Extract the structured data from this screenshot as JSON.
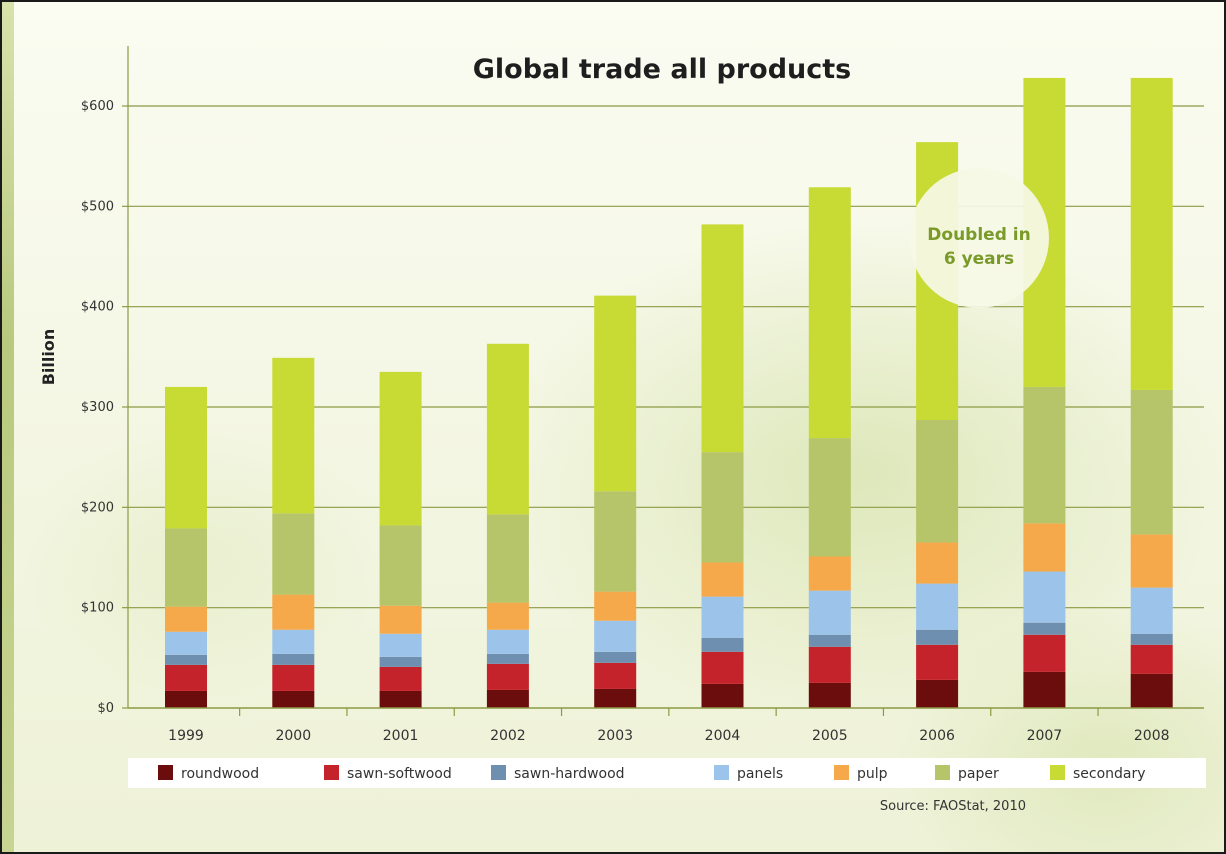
{
  "chart_data": {
    "type": "bar",
    "stacked": true,
    "title": "Global trade all products",
    "ylabel": "Billion",
    "xlabel": "",
    "ylim": [
      0,
      640
    ],
    "yticks": [
      0,
      100,
      200,
      300,
      400,
      500,
      600
    ],
    "ytick_labels": [
      "$0",
      "$100",
      "$200",
      "$300",
      "$400",
      "$500",
      "$600"
    ],
    "grid": true,
    "legend_position": "bottom",
    "categories": [
      "1999",
      "2000",
      "2001",
      "2002",
      "2003",
      "2004",
      "2005",
      "2006",
      "2007",
      "2008"
    ],
    "series": [
      {
        "name": "roundwood",
        "color": "#6b0d0d",
        "values": [
          17,
          17,
          17,
          18,
          19,
          24,
          25,
          28,
          36,
          34
        ]
      },
      {
        "name": "sawn-softwood",
        "color": "#c4232c",
        "values": [
          26,
          26,
          24,
          26,
          26,
          32,
          36,
          35,
          37,
          29
        ]
      },
      {
        "name": "sawn-hardwood",
        "color": "#6f8fb0",
        "values": [
          10,
          11,
          10,
          10,
          11,
          14,
          12,
          15,
          12,
          11
        ]
      },
      {
        "name": "panels",
        "color": "#9cc4ea",
        "values": [
          23,
          24,
          23,
          24,
          31,
          41,
          44,
          46,
          51,
          46
        ]
      },
      {
        "name": "pulp",
        "color": "#f6a94a",
        "values": [
          25,
          35,
          28,
          27,
          29,
          34,
          34,
          41,
          48,
          53
        ]
      },
      {
        "name": "paper",
        "color": "#b6c46a",
        "values": [
          78,
          81,
          80,
          88,
          100,
          110,
          118,
          122,
          136,
          144
        ]
      },
      {
        "name": "secondary",
        "color": "#c7db34",
        "values": [
          141,
          155,
          153,
          170,
          195,
          227,
          250,
          277,
          308,
          311
        ]
      }
    ],
    "annotations": [
      {
        "text_line1": "Doubled in",
        "text_line2": "6 years"
      }
    ],
    "source": "Source: FAOStat, 2010"
  }
}
